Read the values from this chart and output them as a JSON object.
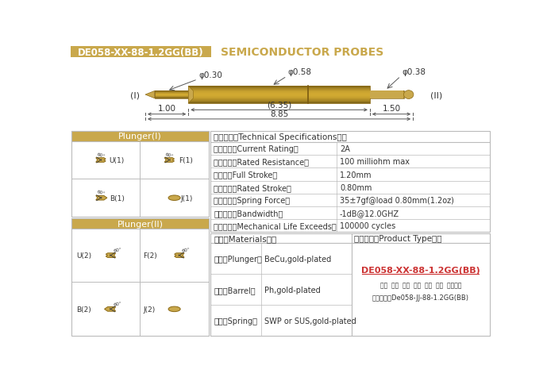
{
  "title_box_text": "DE058-XX-88-1.2GG(BB)",
  "title_box_color": "#C9A84C",
  "title_text": "SEMICONDUCTOR PROBES",
  "title_text_color": "#C9A84C",
  "bg_color": "#FFFFFF",
  "gold_color": "#C9A84C",
  "header_text_color": "#FFFFFF",
  "table_border": "#BBBBBB",
  "dim_color": "#444444",
  "dim_d030": "φ0.30",
  "dim_d058": "φ0.58",
  "dim_d038": "φ0.38",
  "dim_635": "(6.35)",
  "dim_100": "1.00",
  "dim_150": "1.50",
  "dim_885": "8.85",
  "label_I": "(I)",
  "label_II": "(II)",
  "spec_title": "技术要求（Technical Specifications）：",
  "specs": [
    [
      "额定电流（Current Rating）",
      "2A"
    ],
    [
      "额定电阵（Rated Resistance）",
      "100 milliohm max"
    ],
    [
      "满行程（Full Stroke）",
      "1.20mm"
    ],
    [
      "额定行程（Rated Stroke）",
      "0.80mm"
    ],
    [
      "额定弹力（Spring Force）",
      "35±7gf@load 0.80mm(1.2oz)"
    ],
    [
      "频率带宽（Bandwidth）",
      "-1dB@12.0GHZ"
    ],
    [
      "测试寿命（Mechanical Life Exceeds）",
      "100000 cycles"
    ]
  ],
  "mat_title": "材质（Materials）：",
  "materials": [
    [
      "针头（Plunger）",
      "BeCu,gold-plated"
    ],
    [
      "针管（Barrel）",
      "Ph,gold-plated"
    ],
    [
      "弹簧（Spring）",
      "SWP or SUS,gold-plated"
    ]
  ],
  "product_title": "成品型号（Product Type）：",
  "product_model": "DE058-XX-88-1.2GG(BB)",
  "product_labels": "系列  规格  头型  式长  弹力  销金  针头材质",
  "product_order": "订购举例：De058-JJ-88-1.2GG(BB)",
  "plunger1_title": "Plunger(I)",
  "plunger2_title": "Plunger(II)"
}
